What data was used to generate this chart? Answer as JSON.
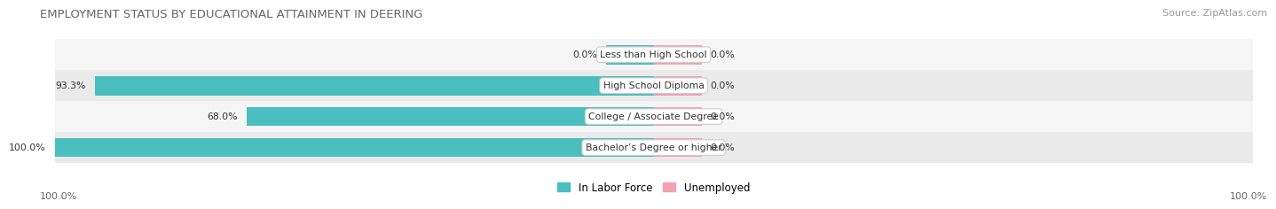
{
  "title": "EMPLOYMENT STATUS BY EDUCATIONAL ATTAINMENT IN DEERING",
  "source": "Source: ZipAtlas.com",
  "categories": [
    "Less than High School",
    "High School Diploma",
    "College / Associate Degree",
    "Bachelor’s Degree or higher"
  ],
  "labor_force": [
    0.0,
    93.3,
    68.0,
    100.0
  ],
  "unemployed": [
    0.0,
    0.0,
    0.0,
    0.0
  ],
  "labor_force_color": "#4BBFBF",
  "unemployed_color": "#F4A0B5",
  "row_bg_even": "#f5f5f5",
  "row_bg_odd": "#eaeaea",
  "max_value": 100.0,
  "title_fontsize": 9.5,
  "source_fontsize": 8,
  "label_fontsize": 8,
  "axis_label_left": "100.0%",
  "axis_label_right": "100.0%",
  "legend_labor_force": "In Labor Force",
  "legend_unemployed": "Unemployed",
  "unemployed_stub": 8.0
}
